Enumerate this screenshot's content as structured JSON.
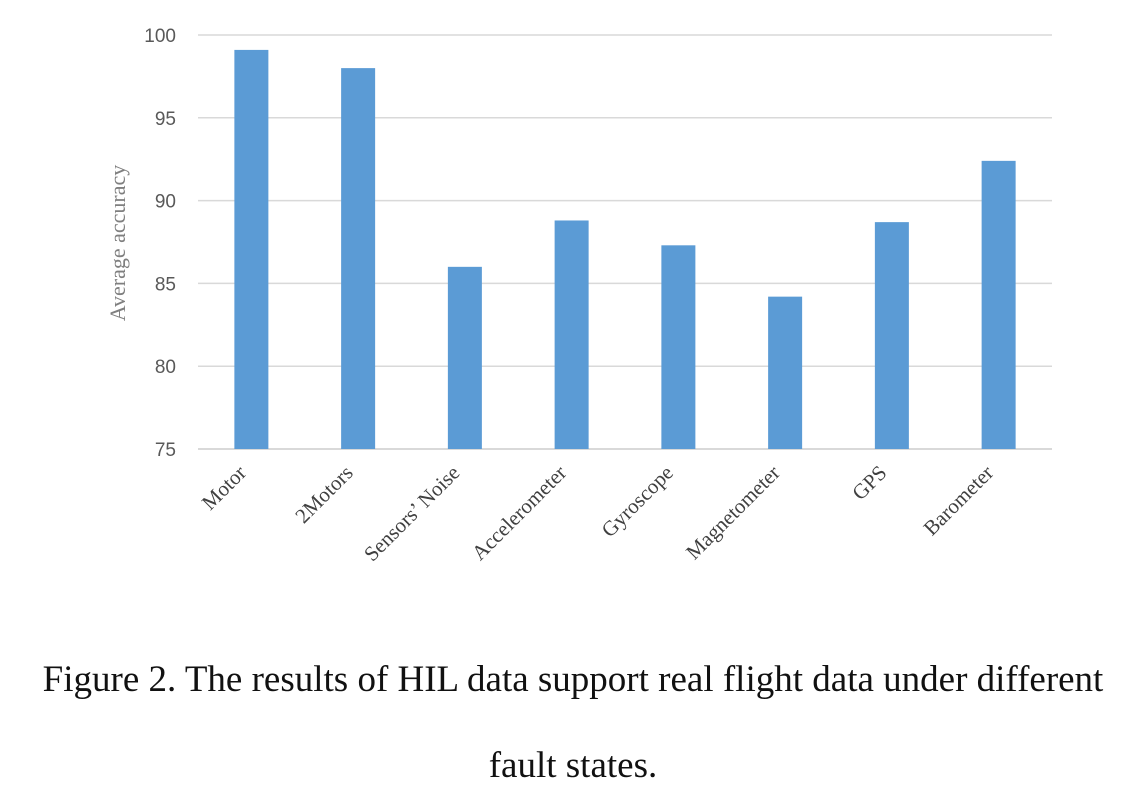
{
  "chart_data": {
    "type": "bar",
    "categories": [
      "Motor",
      "2Motors",
      "Sensors’ Noise",
      "Accelerometer",
      "Gyroscope",
      "Magnetometer",
      "GPS",
      "Barometer"
    ],
    "values": [
      99.1,
      98.0,
      86.0,
      88.8,
      87.3,
      84.2,
      88.7,
      92.4
    ],
    "title": "",
    "xlabel": "",
    "ylabel": "Average accuracy",
    "ylim": [
      75,
      100
    ],
    "yticks": [
      75,
      80,
      85,
      90,
      95,
      100
    ],
    "grid": true,
    "bar_color": "#5b9bd5",
    "grid_color": "#d9d9d9"
  },
  "caption": {
    "line1": "Figure 2. The results of HIL data support real flight data under different",
    "line2": "fault states."
  }
}
